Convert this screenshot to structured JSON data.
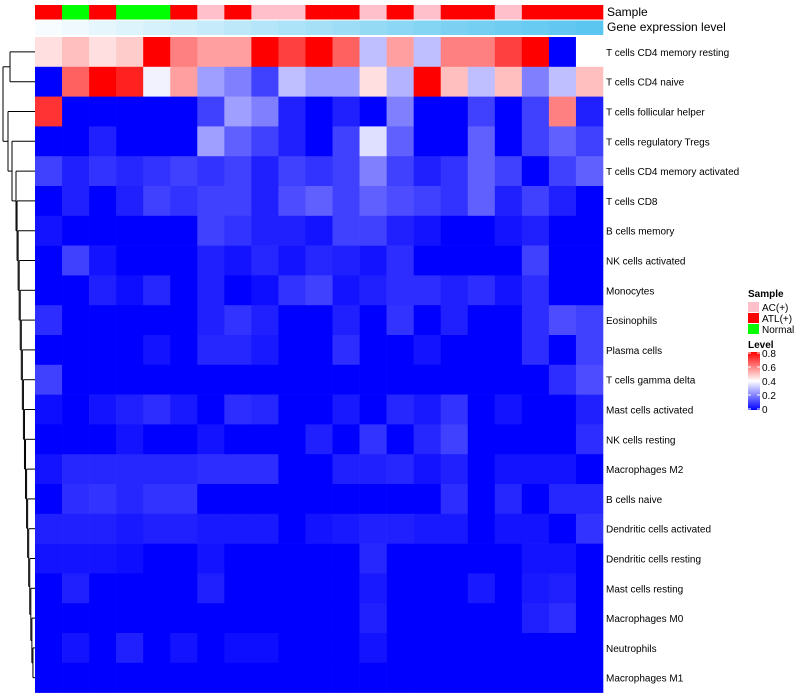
{
  "chart_data": {
    "type": "heatmap",
    "title": "",
    "annotation_tracks": [
      {
        "name": "Sample",
        "label": "Sample"
      },
      {
        "name": "Gene expression level",
        "label": "Gene expression level"
      }
    ],
    "sample_groups": [
      "ATL(+)",
      "Normal",
      "ATL(+)",
      "Normal",
      "Normal",
      "ATL(+)",
      "AC(+)",
      "ATL(+)",
      "AC(+)",
      "AC(+)",
      "ATL(+)",
      "ATL(+)",
      "AC(+)",
      "ATL(+)",
      "AC(+)",
      "ATL(+)",
      "ATL(+)",
      "AC(+)",
      "ATL(+)",
      "ATL(+)",
      "ATL(+)"
    ],
    "gene_expression_level": [
      0.05,
      0.1,
      0.15,
      0.2,
      0.25,
      0.3,
      0.35,
      0.4,
      0.45,
      0.5,
      0.55,
      0.6,
      0.65,
      0.7,
      0.75,
      0.8,
      0.85,
      0.88,
      0.92,
      0.96,
      1.0
    ],
    "rows": [
      "T cells CD4 memory resting",
      "T cells CD4 naive",
      "T cells follicular helper",
      "T cells regulatory  Tregs",
      "T cells CD4 memory activated",
      "T cells CD8",
      "B cells memory",
      "NK cells activated",
      "Monocytes",
      "Eosinophils",
      "Plasma cells",
      "T cells gamma delta",
      "Mast cells activated",
      "NK cells resting",
      "Macrophages M2",
      "B cells naive",
      "Dendritic cells activated",
      "Dendritic cells resting",
      "Mast cells resting",
      "Macrophages M0",
      "Neutrophils",
      "Macrophages M1"
    ],
    "values": [
      [
        0.45,
        0.5,
        0.45,
        0.48,
        0.8,
        0.6,
        0.55,
        0.55,
        0.8,
        0.7,
        0.8,
        0.65,
        0.3,
        0.55,
        0.3,
        0.6,
        0.6,
        0.7,
        0.8,
        0.0,
        0.4
      ],
      [
        0.0,
        0.65,
        0.8,
        0.75,
        0.38,
        0.55,
        0.25,
        0.2,
        0.1,
        0.3,
        0.25,
        0.25,
        0.45,
        0.28,
        0.8,
        0.5,
        0.3,
        0.5,
        0.2,
        0.3,
        0.5
      ],
      [
        0.72,
        0.0,
        0.0,
        0.0,
        0.0,
        0.0,
        0.1,
        0.25,
        0.2,
        0.05,
        0.0,
        0.05,
        0.0,
        0.2,
        0.0,
        0.0,
        0.1,
        0.0,
        0.1,
        0.6,
        0.05
      ],
      [
        0.0,
        0.0,
        0.05,
        0.0,
        0.0,
        0.0,
        0.25,
        0.15,
        0.1,
        0.05,
        0.0,
        0.1,
        0.35,
        0.15,
        0.0,
        0.0,
        0.15,
        0.0,
        0.1,
        0.15,
        0.1
      ],
      [
        0.1,
        0.05,
        0.08,
        0.06,
        0.08,
        0.1,
        0.08,
        0.1,
        0.05,
        0.1,
        0.08,
        0.1,
        0.2,
        0.1,
        0.05,
        0.08,
        0.15,
        0.1,
        0.0,
        0.1,
        0.15
      ],
      [
        0.0,
        0.05,
        0.0,
        0.05,
        0.1,
        0.08,
        0.1,
        0.1,
        0.05,
        0.12,
        0.15,
        0.1,
        0.15,
        0.12,
        0.1,
        0.08,
        0.15,
        0.05,
        0.1,
        0.05,
        0.0
      ],
      [
        0.03,
        0.0,
        0.0,
        0.0,
        0.0,
        0.0,
        0.1,
        0.08,
        0.05,
        0.05,
        0.03,
        0.1,
        0.1,
        0.05,
        0.03,
        0.0,
        0.0,
        0.03,
        0.05,
        0.0,
        0.0
      ],
      [
        0.0,
        0.1,
        0.03,
        0.0,
        0.0,
        0.0,
        0.05,
        0.03,
        0.06,
        0.03,
        0.06,
        0.05,
        0.03,
        0.07,
        0.0,
        0.0,
        0.0,
        0.0,
        0.1,
        0.0,
        0.0
      ],
      [
        0.0,
        0.0,
        0.05,
        0.02,
        0.06,
        0.0,
        0.05,
        0.0,
        0.02,
        0.08,
        0.1,
        0.03,
        0.05,
        0.07,
        0.07,
        0.05,
        0.07,
        0.03,
        0.07,
        0.0,
        0.0
      ],
      [
        0.07,
        0.0,
        0.0,
        0.0,
        0.0,
        0.0,
        0.05,
        0.08,
        0.05,
        0.0,
        0.0,
        0.05,
        0.0,
        0.08,
        0.0,
        0.05,
        0.0,
        0.0,
        0.07,
        0.12,
        0.1
      ],
      [
        0.0,
        0.0,
        0.0,
        0.0,
        0.03,
        0.0,
        0.06,
        0.06,
        0.04,
        0.0,
        0.0,
        0.07,
        0.0,
        0.0,
        0.03,
        0.0,
        0.0,
        0.0,
        0.07,
        0.0,
        0.1
      ],
      [
        0.1,
        0.0,
        0.0,
        0.0,
        0.0,
        0.0,
        0.0,
        0.0,
        0.0,
        0.0,
        0.0,
        0.0,
        0.0,
        0.0,
        0.0,
        0.0,
        0.0,
        0.0,
        0.0,
        0.07,
        0.12
      ],
      [
        0.02,
        0.0,
        0.03,
        0.05,
        0.07,
        0.04,
        0.0,
        0.07,
        0.06,
        0.0,
        0.0,
        0.04,
        0.0,
        0.06,
        0.04,
        0.08,
        0.0,
        0.03,
        0.0,
        0.0,
        0.05
      ],
      [
        0.0,
        0.0,
        0.0,
        0.03,
        0.0,
        0.0,
        0.03,
        0.0,
        0.0,
        0.0,
        0.05,
        0.0,
        0.08,
        0.0,
        0.06,
        0.1,
        0.0,
        0.0,
        0.0,
        0.0,
        0.07
      ],
      [
        0.03,
        0.06,
        0.06,
        0.06,
        0.06,
        0.06,
        0.07,
        0.07,
        0.07,
        0.0,
        0.0,
        0.05,
        0.05,
        0.06,
        0.03,
        0.05,
        0.0,
        0.03,
        0.03,
        0.03,
        0.0
      ],
      [
        0.0,
        0.07,
        0.08,
        0.06,
        0.08,
        0.08,
        0.0,
        0.0,
        0.0,
        0.0,
        0.0,
        0.0,
        0.0,
        0.0,
        0.0,
        0.07,
        0.0,
        0.06,
        0.0,
        0.06,
        0.06
      ],
      [
        0.05,
        0.05,
        0.05,
        0.04,
        0.05,
        0.05,
        0.04,
        0.04,
        0.04,
        0.0,
        0.03,
        0.04,
        0.05,
        0.05,
        0.04,
        0.04,
        0.0,
        0.03,
        0.03,
        0.0,
        0.08
      ],
      [
        0.03,
        0.03,
        0.03,
        0.02,
        0.0,
        0.0,
        0.03,
        0.0,
        0.0,
        0.0,
        0.0,
        0.0,
        0.06,
        0.0,
        0.0,
        0.0,
        0.0,
        0.0,
        0.03,
        0.03,
        0.0
      ],
      [
        0.0,
        0.05,
        0.0,
        0.0,
        0.0,
        0.0,
        0.05,
        0.0,
        0.0,
        0.0,
        0.0,
        0.0,
        0.04,
        0.0,
        0.0,
        0.0,
        0.04,
        0.0,
        0.04,
        0.05,
        0.0
      ],
      [
        0.0,
        0.0,
        0.0,
        0.0,
        0.0,
        0.0,
        0.0,
        0.0,
        0.0,
        0.0,
        0.0,
        0.0,
        0.05,
        0.0,
        0.0,
        0.0,
        0.0,
        0.0,
        0.05,
        0.07,
        0.0
      ],
      [
        0.0,
        0.03,
        0.0,
        0.05,
        0.0,
        0.03,
        0.0,
        0.02,
        0.02,
        0.0,
        0.0,
        0.0,
        0.03,
        0.0,
        0.0,
        0.0,
        0.0,
        0.0,
        0.0,
        0.0,
        0.0
      ],
      [
        0.0,
        0.0,
        0.0,
        0.0,
        0.0,
        0.0,
        0.0,
        0.0,
        0.0,
        0.0,
        0.0,
        0.0,
        0.0,
        0.0,
        0.0,
        0.0,
        0.0,
        0.0,
        0.0,
        0.0,
        0.0
      ]
    ],
    "legend": {
      "sample_title": "Sample",
      "sample_entries": [
        {
          "label": "AC(+)",
          "color": "#ffc0cb"
        },
        {
          "label": "ATL(+)",
          "color": "#ff0000"
        },
        {
          "label": "Normal",
          "color": "#00ff00"
        }
      ],
      "level_title": "Level",
      "level_ticks": [
        "0.8",
        "0.6",
        "0.4",
        "0.2",
        "0"
      ],
      "level_range": [
        0,
        0.8
      ]
    },
    "colors": {
      "low": "#0000ff",
      "mid": "#ffffff",
      "high": "#ff0000",
      "gene_expression_low": "#ffffff",
      "gene_expression_high": "#5bc6f0"
    }
  }
}
